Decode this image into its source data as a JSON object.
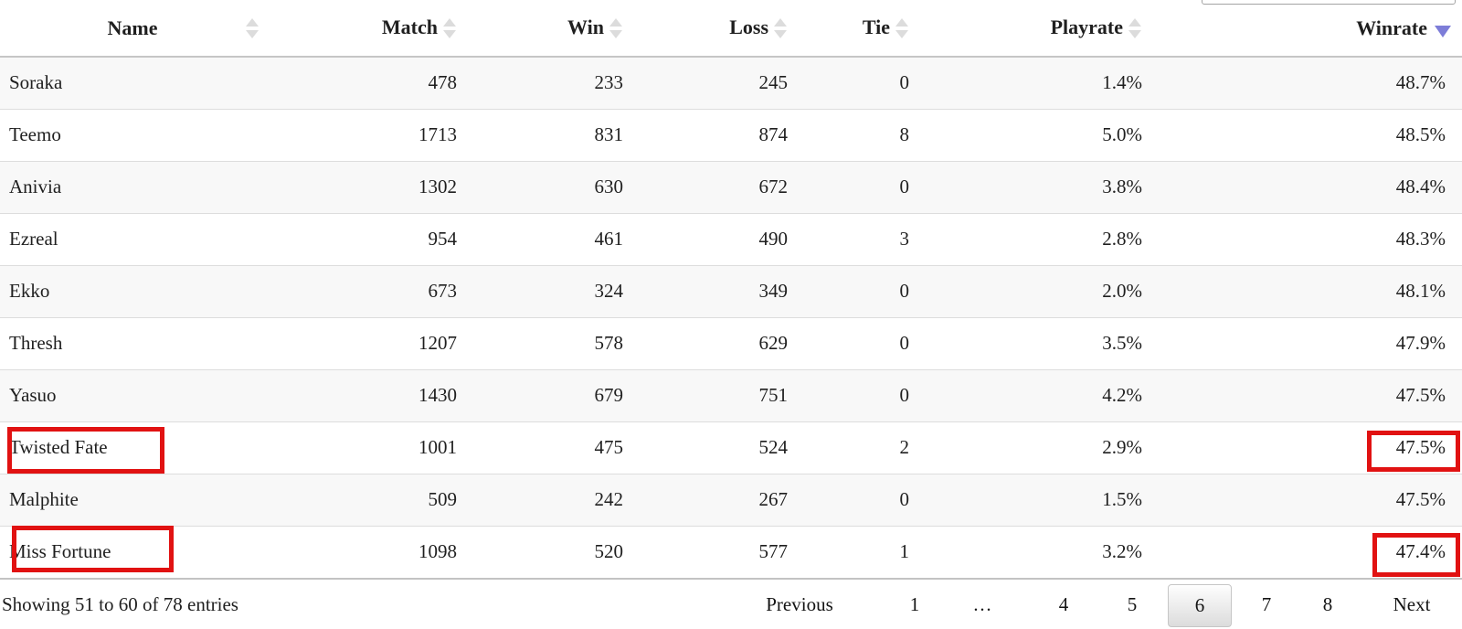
{
  "search": {
    "value": ""
  },
  "table": {
    "columns": [
      {
        "label": "Name",
        "sort": "both"
      },
      {
        "label": "Match",
        "sort": "both"
      },
      {
        "label": "Win",
        "sort": "both"
      },
      {
        "label": "Loss",
        "sort": "both"
      },
      {
        "label": "Tie",
        "sort": "both"
      },
      {
        "label": "Playrate",
        "sort": "both"
      },
      {
        "label": "Winrate",
        "sort": "desc"
      }
    ],
    "rows": [
      [
        "Soraka",
        "478",
        "233",
        "245",
        "0",
        "1.4%",
        "48.7%"
      ],
      [
        "Teemo",
        "1713",
        "831",
        "874",
        "8",
        "5.0%",
        "48.5%"
      ],
      [
        "Anivia",
        "1302",
        "630",
        "672",
        "0",
        "3.8%",
        "48.4%"
      ],
      [
        "Ezreal",
        "954",
        "461",
        "490",
        "3",
        "2.8%",
        "48.3%"
      ],
      [
        "Ekko",
        "673",
        "324",
        "349",
        "0",
        "2.0%",
        "48.1%"
      ],
      [
        "Thresh",
        "1207",
        "578",
        "629",
        "0",
        "3.5%",
        "47.9%"
      ],
      [
        "Yasuo",
        "1430",
        "679",
        "751",
        "0",
        "4.2%",
        "47.5%"
      ],
      [
        "Twisted Fate",
        "1001",
        "475",
        "524",
        "2",
        "2.9%",
        "47.5%"
      ],
      [
        "Malphite",
        "509",
        "242",
        "267",
        "0",
        "1.5%",
        "47.5%"
      ],
      [
        "Miss Fortune",
        "1098",
        "520",
        "577",
        "1",
        "3.2%",
        "47.4%"
      ]
    ],
    "highlighted": {
      "names": [
        "Twisted Fate",
        "Miss Fortune"
      ],
      "winrates": [
        "47.5%",
        "47.4%"
      ]
    }
  },
  "footer": {
    "info": "Showing 51 to 60 of 78 entries",
    "pagination": {
      "previous_label": "Previous",
      "next_label": "Next",
      "pages": [
        "1",
        "…",
        "4",
        "5",
        "6",
        "7",
        "8"
      ],
      "current_page": "6"
    }
  },
  "colors": {
    "sort_active_arrow": "#7d7dd8",
    "sort_inactive_arrow": "#dcdcdc",
    "highlight_box": "#e11212",
    "row_stripe": "#f8f8f8"
  }
}
